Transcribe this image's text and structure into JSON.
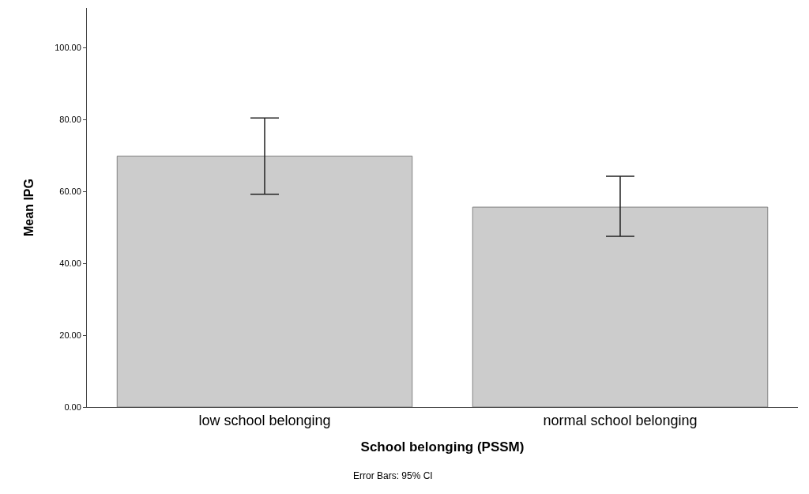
{
  "chart_data": {
    "type": "bar",
    "xlabel": "School belonging (PSSM)",
    "ylabel": "Mean IPG",
    "categories": [
      "low school belonging",
      "normal school belonging"
    ],
    "values": [
      69.8,
      55.6
    ],
    "color": "#cccccc",
    "errors": [
      [
        59.2,
        80.4
      ],
      [
        47.5,
        64.2
      ]
    ],
    "ylim": [
      0,
      111
    ],
    "yticks": [
      {
        "value": 0,
        "label": "0.00"
      },
      {
        "value": 20,
        "label": "20.00"
      },
      {
        "value": 40,
        "label": "40.00"
      },
      {
        "value": 60,
        "label": "60.00"
      },
      {
        "value": 80,
        "label": "80.00"
      },
      {
        "value": 100,
        "label": "100.00"
      }
    ],
    "annotations": [
      "Error Bars: 95% CI"
    ]
  }
}
